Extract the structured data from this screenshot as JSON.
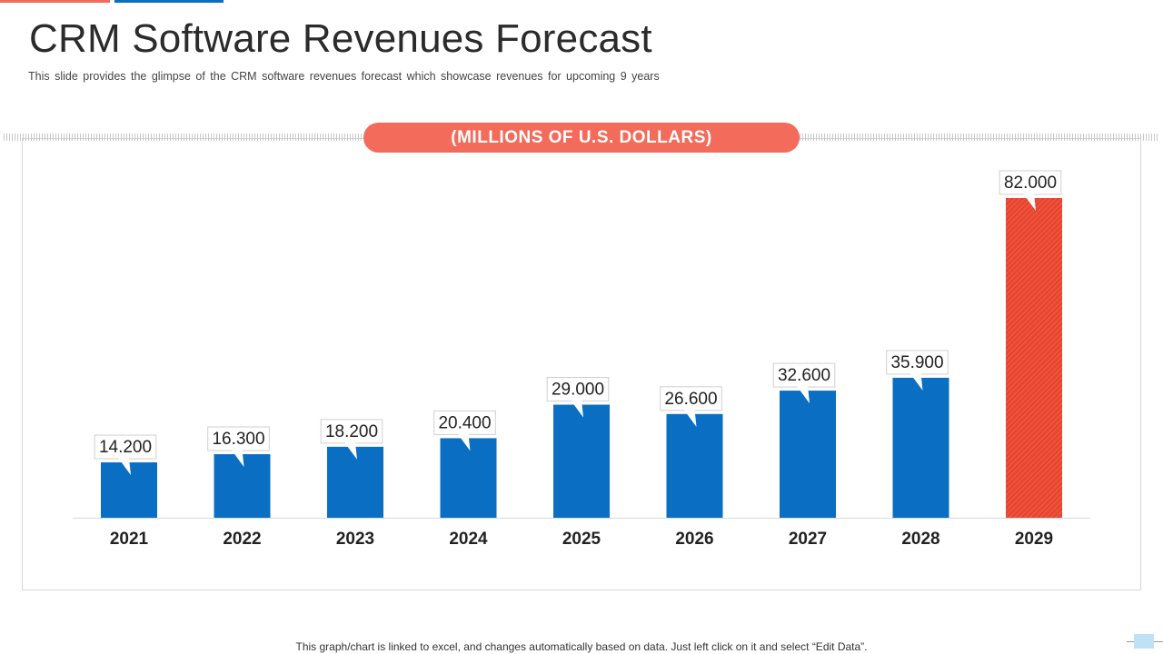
{
  "slide": {
    "title": "CRM Software Revenues Forecast",
    "subtitle": "This slide provides  the glimpse of the CRM software revenues forecast which showcase revenues for upcoming 9 years",
    "unit_label": "(MILLIONS OF U.S. DOLLARS)",
    "footer": "This graph/chart is linked to excel,  and changes automatically based on data. Just left click on it and select “Edit Data”."
  },
  "colors": {
    "accent_red": "#f26b5b",
    "bar_blue": "#0a6fc2",
    "highlight_red": "#e8452f"
  },
  "chart_data": {
    "type": "bar",
    "title": "",
    "xlabel": "",
    "ylabel": "",
    "categories": [
      "2021",
      "2022",
      "2023",
      "2024",
      "2025",
      "2026",
      "2027",
      "2028",
      "2029"
    ],
    "values": [
      14.2,
      16.3,
      18.2,
      20.4,
      29.0,
      26.6,
      32.6,
      35.9,
      82.0
    ],
    "data_labels": [
      "14.200",
      "16.300",
      "18.200",
      "20.400",
      "29.000",
      "26.600",
      "32.600",
      "35.900",
      "82.000"
    ],
    "highlight_index": 8,
    "ylim": [
      0,
      82
    ],
    "grid": false,
    "legend": "none"
  }
}
